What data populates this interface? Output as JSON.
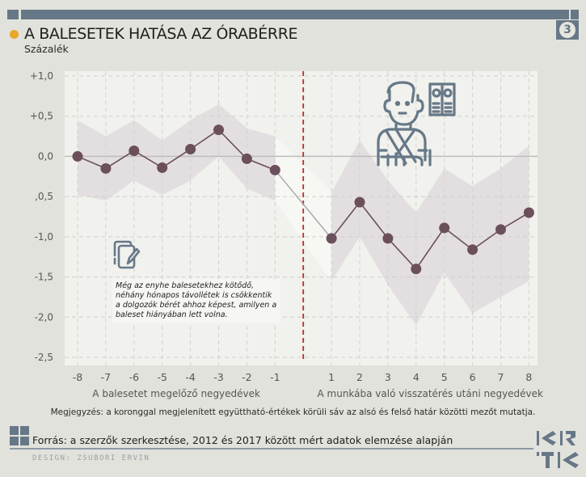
{
  "header": {
    "title": "A BALESETEK HATÁSA AZ ÓRABÉRRE",
    "subtitle": "Százalék",
    "badge_number": "3"
  },
  "colors": {
    "accent_dot": "#e8a82a",
    "brand_gray_blue": "#667887",
    "series": "#6b4f5b",
    "band": "#e3dfe1",
    "divider": "#c8262e",
    "connector": "#aaaaaa"
  },
  "icons": {
    "annotation_icon": "notebook-pen-icon",
    "illustration_icon": "injured-worker-money-icon",
    "source_icon": "grid-squares-icon",
    "logo": "krtk-logo"
  },
  "annotation": {
    "text": "Még az enyhe balesetekhez kötődő, néhány hónapos távollétek is csökkentik a dolgozók bérét ahhoz képest, amilyen a baleset hiányában lett volna."
  },
  "footer": {
    "note": "Megjegyzés: a koronggal megjelenített együttható-értékek körüli sáv az alsó és felső határ közötti mezőt mutatja.",
    "source": "Forrás: a szerzők szerkesztése, 2012 és 2017 között mért adatok elemzése alapján",
    "design": "DESIGN: ZSUBORI ERVIN"
  },
  "chart_data": {
    "type": "line",
    "title": "A BALESETEK HATÁSA AZ ÓRABÉRRE",
    "ylabel": "Százalék",
    "ylim": [
      -2.5,
      1.0
    ],
    "y_ticks": [
      1.0,
      0.5,
      0.0,
      -0.5,
      -1.0,
      -1.5,
      -2.0,
      -2.5
    ],
    "y_tick_labels": [
      "+1,0",
      "+0,5",
      "0,0",
      ",0,5",
      "-1,0",
      "-1,5",
      "-2,0",
      "-2,5"
    ],
    "grid": true,
    "divider_between": [
      "-1",
      "1"
    ],
    "groups": [
      {
        "xlabel": "A balesetet megelőző negyedévek",
        "x": [
          "-8",
          "-7",
          "-6",
          "-5",
          "-4",
          "-3",
          "-2",
          "-1"
        ],
        "values": [
          0.0,
          -0.15,
          0.07,
          -0.14,
          0.09,
          0.33,
          -0.03,
          -0.17
        ],
        "upper": [
          0.45,
          0.25,
          0.45,
          0.2,
          0.45,
          0.65,
          0.35,
          0.25
        ],
        "lower": [
          -0.48,
          -0.55,
          -0.3,
          -0.48,
          -0.3,
          0.0,
          -0.4,
          -0.55
        ]
      },
      {
        "xlabel": "A munkába való visszatérés utáni negyedévek",
        "x": [
          "1",
          "2",
          "3",
          "4",
          "5",
          "6",
          "7",
          "8"
        ],
        "values": [
          -1.02,
          -0.57,
          -1.02,
          -1.4,
          -0.89,
          -1.16,
          -0.91,
          -0.7
        ],
        "upper": [
          -0.45,
          0.2,
          -0.3,
          -0.7,
          -0.15,
          -0.37,
          -0.15,
          0.13
        ],
        "lower": [
          -1.55,
          -1.0,
          -1.6,
          -2.1,
          -1.45,
          -1.95,
          -1.75,
          -1.55
        ]
      }
    ]
  }
}
